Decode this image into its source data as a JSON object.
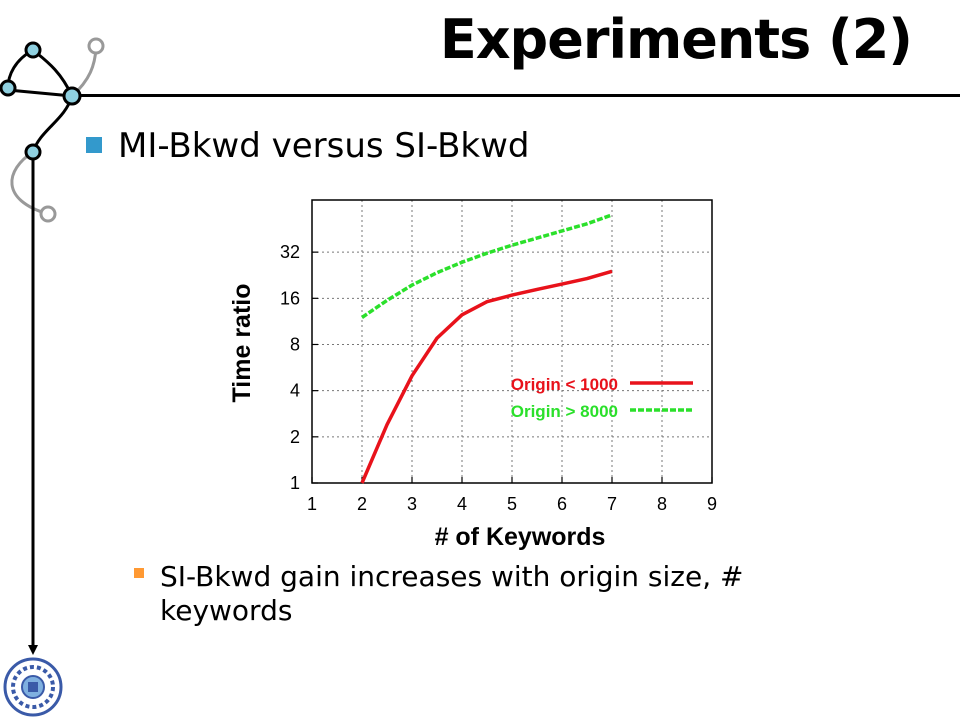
{
  "slide": {
    "title": "Experiments (2)",
    "bullet_main": "MI-Bkwd versus SI-Bkwd",
    "bullet_sub": "SI-Bkwd gain increases with origin size, # keywords"
  },
  "colors": {
    "red_series": "#e8121b",
    "green_series": "#2be02b",
    "bullet_blue": "#3399cc",
    "bullet_orange": "#ff9933"
  },
  "chart_data": {
    "type": "line",
    "xlabel": "# of Keywords",
    "ylabel": "Time ratio",
    "x_ticks": [
      1,
      2,
      3,
      4,
      5,
      6,
      7,
      8,
      9
    ],
    "y_ticks": [
      1,
      2,
      4,
      8,
      16,
      32
    ],
    "xlim": [
      1,
      9
    ],
    "ylim": [
      1,
      70
    ],
    "y_scale": "log2",
    "grid": true,
    "legend_placement": "right",
    "series": [
      {
        "name": "Origin < 1000",
        "color": "#e8121b",
        "style": "solid",
        "x": [
          2,
          2.5,
          3,
          3.5,
          4,
          4.5,
          5,
          5.5,
          6,
          6.5,
          7
        ],
        "y": [
          1,
          2.4,
          5.0,
          8.8,
          12.5,
          15.2,
          16.8,
          18.3,
          19.8,
          21.5,
          24
        ]
      },
      {
        "name": "Origin > 8000",
        "color": "#2be02b",
        "style": "dashed",
        "x": [
          2,
          2.5,
          3,
          3.5,
          4,
          4.5,
          5,
          5.5,
          6,
          6.5,
          7
        ],
        "y": [
          12,
          15.5,
          19.5,
          23.5,
          27.5,
          31.5,
          35.5,
          39.5,
          44,
          49,
          56
        ]
      }
    ]
  }
}
